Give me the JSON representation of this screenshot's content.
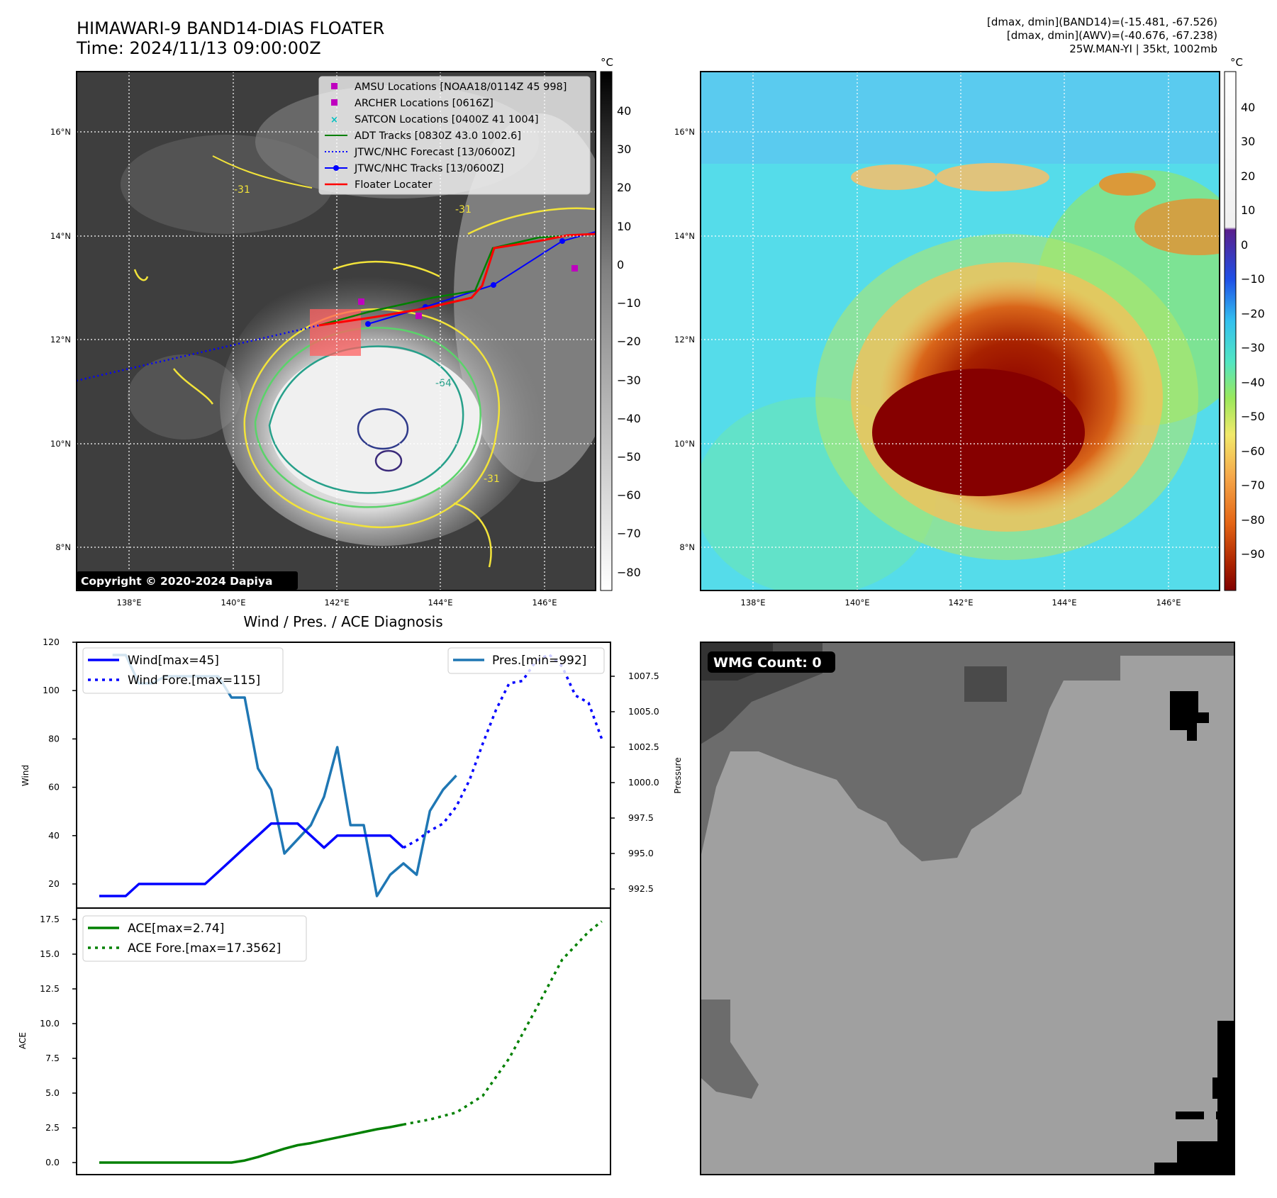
{
  "header": {
    "title_line1": "HIMAWARI-9 BAND14-DIAS FLOATER",
    "title_line2": "Time: 2024/11/13 09:00:00Z",
    "meta_line1": "[dmax, dmin](BAND14)=(-15.481, -67.526)",
    "meta_line2": "[dmax, dmin](AWV)=(-40.676, -67.238)",
    "meta_line3": "25W.MAN-YI | 35kt, 1002mb"
  },
  "map_axes": {
    "lon_ticks": [
      "138°E",
      "140°E",
      "142°E",
      "144°E",
      "146°E"
    ],
    "lat_ticks": [
      "16°N",
      "14°N",
      "12°N",
      "10°N",
      "8°N"
    ],
    "lon_range": [
      137,
      147
    ],
    "lat_range": [
      7.2,
      17.2
    ]
  },
  "ir_panel": {
    "legend": [
      {
        "label": "AMSU Locations [NOAA18/0114Z 45 998]",
        "marker": "square",
        "color": "#bf00bf"
      },
      {
        "label": "ARCHER Locations [0616Z]",
        "marker": "square",
        "color": "#bf00bf"
      },
      {
        "label": "SATCON Locations [0400Z 41 1004]",
        "marker": "x",
        "color": "#00bfbf"
      },
      {
        "label": "ADT Tracks [0830Z 43.0 1002.6]",
        "marker": "line",
        "color": "#008000"
      },
      {
        "label": "JTWC/NHC Forecast [13/0600Z]",
        "marker": "dotted",
        "color": "#0000ff"
      },
      {
        "label": "JTWC/NHC Tracks [13/0600Z]",
        "marker": "line-dot",
        "color": "#0000ff"
      },
      {
        "label": "Floater Locater",
        "marker": "line",
        "color": "#ff0000"
      }
    ],
    "copyright": "Copyright © 2020-2024 Dapiya",
    "colorbar_unit": "°C",
    "colorbar_ticks": [
      "40",
      "30",
      "20",
      "10",
      "0",
      "−10",
      "−20",
      "−30",
      "−40",
      "−50",
      "−60",
      "−70",
      "−80"
    ],
    "contour_labels": [
      "-31",
      "-31",
      "-31",
      "-64"
    ]
  },
  "awv_panel": {
    "colorbar_unit": "°C",
    "colorbar_ticks": [
      "40",
      "30",
      "20",
      "10",
      "0",
      "−10",
      "−20",
      "−30",
      "−40",
      "−50",
      "−60",
      "−70",
      "−80",
      "−90"
    ]
  },
  "diagnosis_panel": {
    "title": "Wind / Pres. / ACE Diagnosis",
    "wind_ylabel": "Wind",
    "pressure_ylabel": "Pressure",
    "ace_ylabel": "ACE",
    "legend_wind": "Wind[max=45]",
    "legend_wind_fore": "Wind Fore.[max=115]",
    "legend_pres": "Pres.[min=992]",
    "legend_ace": "ACE[max=2.74]",
    "legend_ace_fore": "ACE Fore.[max=17.3562]",
    "wind_ticks": [
      "120",
      "100",
      "80",
      "60",
      "40",
      "20"
    ],
    "pres_ticks": [
      "1007.5",
      "1005.0",
      "1002.5",
      "1000.0",
      "997.5",
      "995.0",
      "992.5"
    ],
    "ace_ticks": [
      "17.5",
      "15.0",
      "12.5",
      "10.0",
      "7.5",
      "5.0",
      "2.5",
      "0.0"
    ]
  },
  "wmg_panel": {
    "label": "WMG Count: 0"
  },
  "chart_data": [
    {
      "type": "line",
      "title": "Wind / Pres. / ACE Diagnosis",
      "ylabel": "Wind",
      "ylim": [
        12,
        120
      ],
      "series": [
        {
          "name": "Wind[max=45]",
          "color": "#0000ff",
          "style": "solid",
          "x": [
            0,
            1,
            2,
            3,
            4,
            5,
            6,
            7,
            8,
            9,
            10,
            11,
            12,
            13,
            14,
            15,
            16,
            17,
            18,
            19,
            20,
            21,
            22,
            23
          ],
          "values": [
            15,
            15,
            15,
            20,
            20,
            20,
            20,
            20,
            20,
            25,
            30,
            35,
            40,
            45,
            45,
            45,
            40,
            35,
            40,
            40,
            40,
            40,
            40,
            35
          ]
        },
        {
          "name": "Wind Fore.[max=115]",
          "color": "#0000ff",
          "style": "dotted",
          "x": [
            23,
            24,
            25,
            26,
            27,
            28,
            29,
            30,
            31,
            32,
            33,
            34,
            35,
            36,
            37,
            38
          ],
          "values": [
            35,
            38,
            42,
            45,
            52,
            63,
            78,
            92,
            103,
            104,
            112,
            115,
            110,
            98,
            95,
            80
          ]
        }
      ]
    },
    {
      "type": "line",
      "ylabel": "Pressure",
      "ylim": [
        991.5,
        1009.7
      ],
      "series": [
        {
          "name": "Pres.[min=992]",
          "color": "#1f77b4",
          "style": "solid",
          "x": [
            1,
            2,
            3,
            4,
            5,
            6,
            7,
            8,
            9,
            10,
            11,
            12,
            13,
            14,
            15,
            16,
            17,
            18,
            19,
            20,
            21,
            22,
            23,
            24,
            25,
            26,
            27
          ],
          "values": [
            1009.0,
            1009.0,
            1007.0,
            1007.0,
            1007.5,
            1007.5,
            1007.5,
            1007.5,
            1007.5,
            1006.0,
            1006.0,
            1001.0,
            999.5,
            995.0,
            996.0,
            997.0,
            999.0,
            1002.5,
            997.0,
            997.0,
            992.0,
            993.5,
            994.3,
            993.5,
            998.0,
            999.5,
            1000.5
          ]
        }
      ]
    },
    {
      "type": "line",
      "ylabel": "ACE",
      "ylim": [
        -0.8,
        18.3
      ],
      "series": [
        {
          "name": "ACE[max=2.74]",
          "color": "#008000",
          "style": "solid",
          "x": [
            0,
            2,
            4,
            6,
            8,
            10,
            11,
            12,
            13,
            14,
            15,
            16,
            17,
            18,
            19,
            20,
            21,
            22,
            23
          ],
          "values": [
            0,
            0,
            0,
            0,
            0,
            0,
            0.15,
            0.4,
            0.7,
            1.0,
            1.25,
            1.4,
            1.6,
            1.8,
            2.0,
            2.2,
            2.4,
            2.55,
            2.74
          ]
        },
        {
          "name": "ACE Fore.[max=17.3562]",
          "color": "#008000",
          "style": "dotted",
          "x": [
            23,
            25,
            27,
            29,
            31,
            33,
            35,
            37,
            38
          ],
          "values": [
            2.74,
            3.1,
            3.6,
            4.8,
            7.5,
            11,
            14.6,
            16.6,
            17.36
          ]
        }
      ]
    }
  ]
}
